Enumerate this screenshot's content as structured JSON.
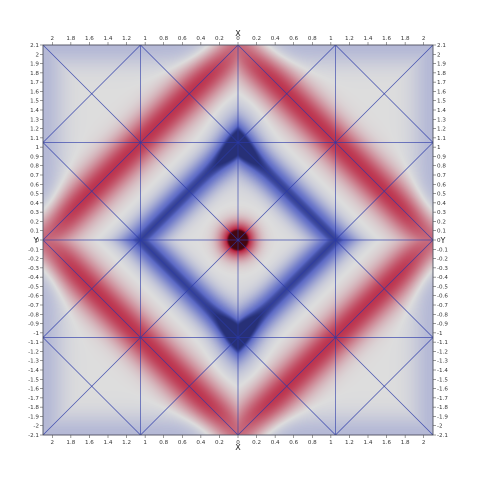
{
  "chart_data": {
    "type": "heatmap",
    "title": "",
    "xlabel": "X",
    "ylabel": "Y",
    "xlim": [
      -2.1,
      2.1
    ],
    "ylim": [
      -2.1,
      2.1
    ],
    "x_ticks": [
      "2",
      "1.8",
      "1.6",
      "1.4",
      "1.2",
      "1",
      "0.8",
      "0.6",
      "0.4",
      "0.2",
      "0",
      "0.2",
      "0.4",
      "0.6",
      "0.8",
      "1",
      "1.2",
      "1.4",
      "1.6",
      "1.8",
      "2"
    ],
    "y_ticks": [
      "2.1",
      "2",
      "1.9",
      "1.8",
      "1.7",
      "1.6",
      "1.5",
      "1.4",
      "1.3",
      "1.2",
      "1.1",
      "1",
      "0.9",
      "0.8",
      "0.7",
      "0.6",
      "0.5",
      "0.4",
      "0.3",
      "0.2",
      "0.1",
      "0",
      "-0.1",
      "-0.2",
      "-0.3",
      "-0.4",
      "-0.5",
      "-0.6",
      "-0.7",
      "-0.8",
      "-0.9",
      "-1",
      "-1.1",
      "-1.2",
      "-1.3",
      "-1.4",
      "-1.5",
      "-1.6",
      "-1.7",
      "-1.8",
      "-1.9",
      "-2",
      "-2.1"
    ],
    "mesh_grid": [
      -2.1,
      -1.05,
      0,
      1.05,
      2.1
    ],
    "grid": true,
    "colormap": "cool-to-warm",
    "colors": {
      "low": "#3b4cc0",
      "mid": "#dddddd",
      "high": "#b40426",
      "mesh_line": "#2a3aa8",
      "background": "#ffffff"
    }
  }
}
